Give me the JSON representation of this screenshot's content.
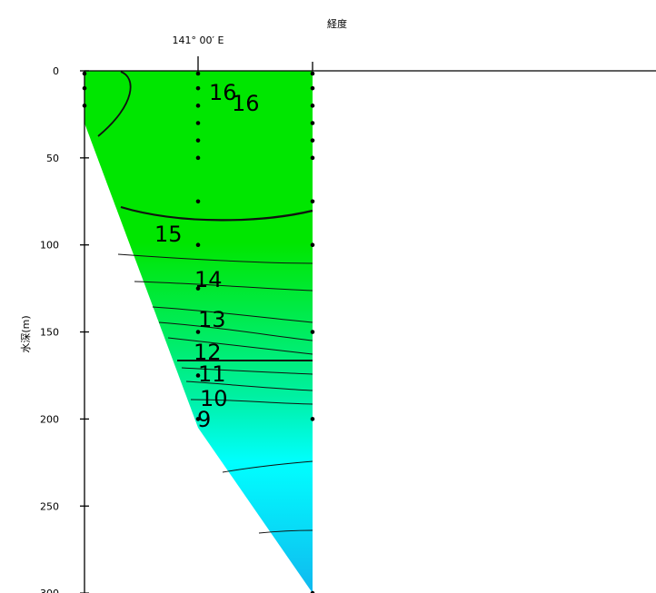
{
  "chart_data": {
    "type": "heatmap",
    "title": "経度",
    "xlabel": "141° 00′ E",
    "ylabel": "水深(m)",
    "ylim": [
      0,
      300
    ],
    "yticks": [
      "0",
      "50",
      "100",
      "150",
      "200",
      "250",
      "300"
    ],
    "colors": {
      "high": "#00e600",
      "mid": "#00f0a0",
      "low": "#00ffff",
      "deep": "#10b8ef"
    },
    "stations": [
      {
        "x": 0,
        "depths": [
          0,
          10,
          20
        ]
      },
      {
        "x": 1,
        "depths": [
          0,
          10,
          20,
          30,
          40,
          50,
          75,
          100,
          125,
          150,
          175,
          200
        ]
      },
      {
        "x": 2,
        "depths": [
          0,
          10,
          20,
          30,
          40,
          50,
          75,
          100,
          150,
          200,
          300
        ]
      }
    ],
    "contour_labels": [
      "16",
      "16",
      "15",
      "14",
      "13",
      "12",
      "11",
      "10",
      "9"
    ]
  }
}
